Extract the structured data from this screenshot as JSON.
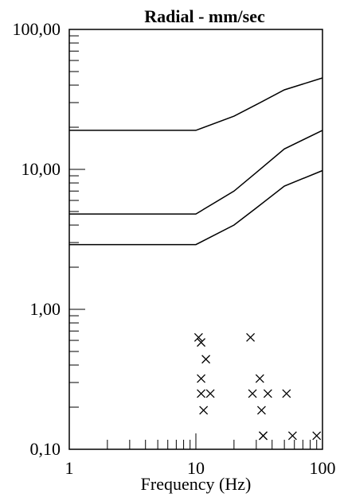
{
  "chart_data": {
    "type": "scatter",
    "title": "Radial - mm/sec",
    "xlabel": "Frequency (Hz)",
    "ylabel": "",
    "x_scale": "log",
    "y_scale": "log",
    "xlim": [
      1,
      100
    ],
    "ylim": [
      0.1,
      100
    ],
    "grid": false,
    "x_tick_labels": [
      {
        "value": 1,
        "label": "1"
      },
      {
        "value": 10,
        "label": "10"
      },
      {
        "value": 100,
        "label": "100"
      }
    ],
    "y_tick_labels": [
      {
        "value": 0.1,
        "label": "0,10"
      },
      {
        "value": 1,
        "label": "1,00"
      },
      {
        "value": 10,
        "label": "10,00"
      },
      {
        "value": 100,
        "label": "100,00"
      }
    ],
    "limit_curves": [
      {
        "x": [
          1,
          10,
          20,
          30,
          50,
          100
        ],
        "y": [
          19,
          19,
          24,
          29,
          37,
          45
        ]
      },
      {
        "x": [
          1,
          10,
          20,
          30,
          50,
          100
        ],
        "y": [
          4.8,
          4.8,
          7,
          9.5,
          14,
          19
        ]
      },
      {
        "x": [
          1,
          10,
          20,
          30,
          50,
          100
        ],
        "y": [
          2.9,
          2.9,
          4,
          5.3,
          7.6,
          9.8
        ]
      }
    ],
    "points": {
      "marker": "x",
      "x": [
        10.5,
        11,
        12,
        11,
        11,
        11.5,
        13,
        27,
        28,
        32,
        33,
        34,
        37,
        34,
        52,
        58,
        90
      ],
      "y": [
        0.63,
        0.58,
        0.44,
        0.32,
        0.25,
        0.19,
        0.25,
        0.63,
        0.25,
        0.32,
        0.19,
        0.125,
        0.25,
        0.125,
        0.25,
        0.125,
        0.125
      ]
    }
  }
}
